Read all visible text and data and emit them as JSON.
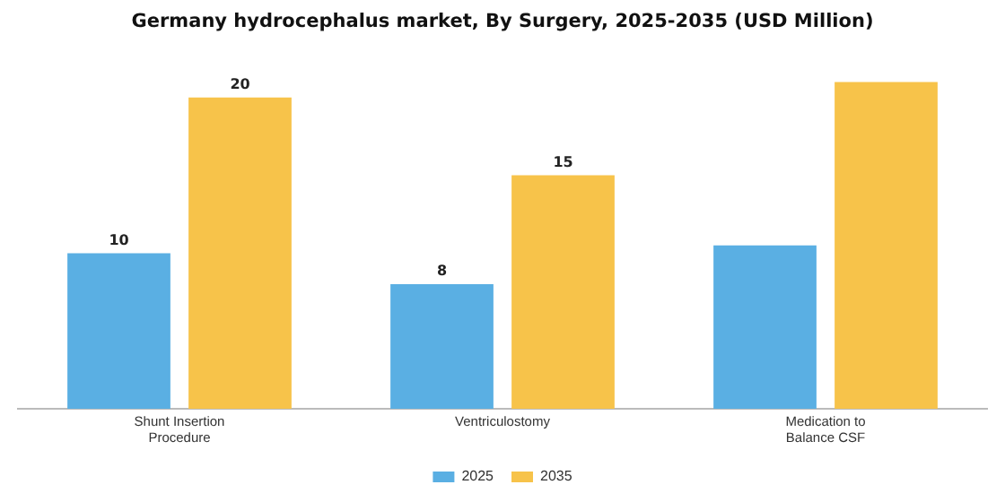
{
  "chart_data": {
    "type": "bar",
    "title": "Germany hydrocephalus market, By Surgery, 2025-2035 (USD Million)",
    "categories": [
      "Shunt Insertion Procedure",
      "Ventriculostomy",
      "Medication to Balance CSF"
    ],
    "series": [
      {
        "name": "2025",
        "color": "#5aafe3",
        "values": [
          10,
          8,
          10.5
        ],
        "value_labels": [
          "10",
          "8",
          null
        ]
      },
      {
        "name": "2035",
        "color": "#f7c34a",
        "values": [
          20,
          15,
          21
        ],
        "value_labels": [
          "20",
          "15",
          null
        ]
      }
    ],
    "legend": "bottom",
    "grid": false,
    "tick_labels": "x"
  }
}
